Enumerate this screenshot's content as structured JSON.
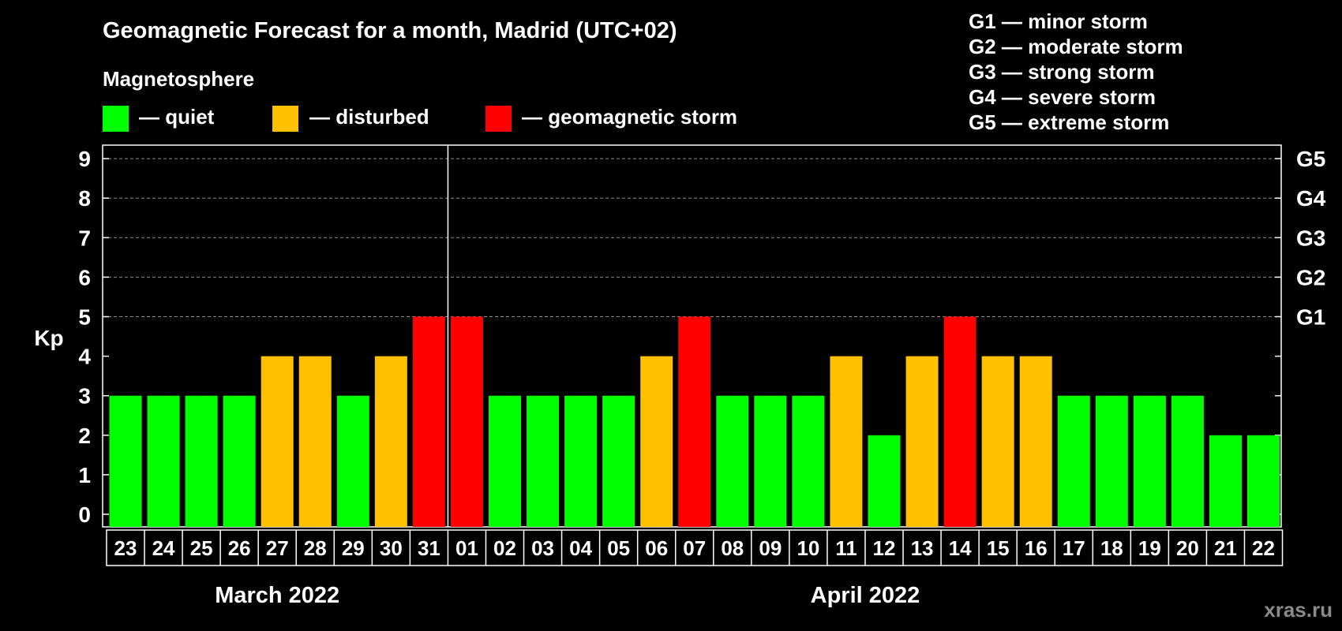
{
  "title": "Geomagnetic Forecast for a month, Madrid (UTC+02)",
  "legend": {
    "heading": "Magnetosphere",
    "items": [
      {
        "label": "— quiet",
        "color": "#00ff00"
      },
      {
        "label": "— disturbed",
        "color": "#ffc000"
      },
      {
        "label": "— geomagnetic storm",
        "color": "#ff0000"
      }
    ]
  },
  "storm_scale": [
    "G1 — minor storm",
    "G2 — moderate storm",
    "G3 — strong storm",
    "G4 — severe storm",
    "G5 — extreme storm"
  ],
  "watermark": "xras.ru",
  "chart_data": {
    "type": "bar",
    "title": "Geomagnetic Forecast for a month, Madrid (UTC+02)",
    "ylabel": "Kp",
    "ylim": [
      0,
      9
    ],
    "yticks": [
      0,
      1,
      2,
      3,
      4,
      5,
      6,
      7,
      8,
      9
    ],
    "right_ticks": [
      {
        "kp": 5,
        "label": "G1"
      },
      {
        "kp": 6,
        "label": "G2"
      },
      {
        "kp": 7,
        "label": "G3"
      },
      {
        "kp": 8,
        "label": "G4"
      },
      {
        "kp": 9,
        "label": "G5"
      }
    ],
    "grid": "dashed horizontal at Kp 5–9",
    "categories": [
      "23",
      "24",
      "25",
      "26",
      "27",
      "28",
      "29",
      "30",
      "31",
      "01",
      "02",
      "03",
      "04",
      "05",
      "06",
      "07",
      "08",
      "09",
      "10",
      "11",
      "12",
      "13",
      "14",
      "15",
      "16",
      "17",
      "18",
      "19",
      "20",
      "21",
      "22"
    ],
    "values": [
      3,
      3,
      3,
      3,
      4,
      4,
      3,
      4,
      5,
      5,
      3,
      3,
      3,
      3,
      4,
      5,
      3,
      3,
      3,
      4,
      2,
      4,
      5,
      4,
      4,
      3,
      3,
      3,
      3,
      2,
      2
    ],
    "months": [
      {
        "label": "March 2022",
        "from": 0,
        "to": 8
      },
      {
        "label": "April 2022",
        "from": 9,
        "to": 30
      }
    ],
    "colors": {
      "quiet": "#00ff00",
      "disturbed": "#ffc000",
      "storm": "#ff0000"
    }
  }
}
